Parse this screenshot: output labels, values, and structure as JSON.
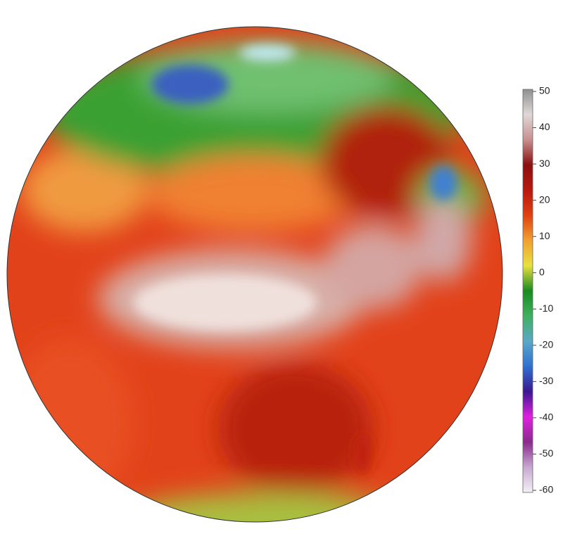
{
  "colorbar": {
    "lim": [
      -60,
      50
    ],
    "ticks": [
      50,
      40,
      30,
      20,
      10,
      0,
      -10,
      -20,
      -30,
      -40,
      -50,
      -60
    ],
    "colors": [
      "#f4f0f6",
      "#c8a8d0",
      "#8a2a8c",
      "#e020e0",
      "#3a1890",
      "#3070d0",
      "#5aa8c8",
      "#40b060",
      "#1a8a20",
      "#e8e040",
      "#f0a030",
      "#e04010",
      "#b81810",
      "#8a1010",
      "#c89090",
      "#e0d8d8",
      "#909090"
    ]
  }
}
